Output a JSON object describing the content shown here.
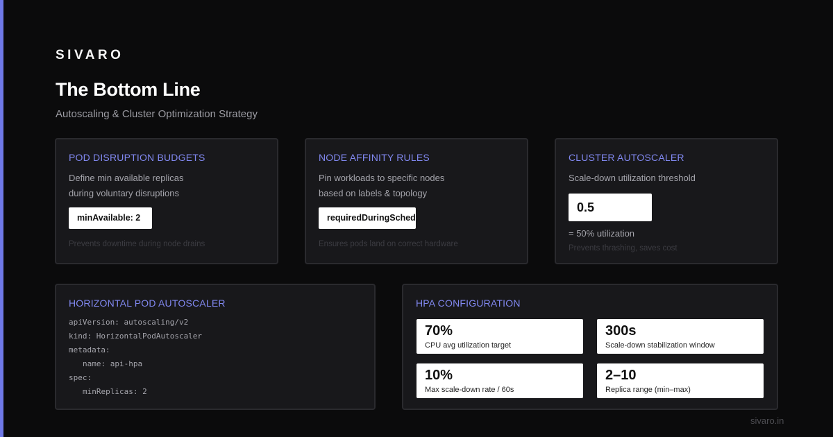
{
  "brand": "SIVARO",
  "title": "The Bottom Line",
  "subtitle": "Autoscaling & Cluster Optimization Strategy",
  "cards": {
    "pdb": {
      "title": "POD DISRUPTION BUDGETS",
      "desc_line1": "Define min available replicas",
      "desc_line2": "during voluntary disruptions",
      "chip": "minAvailable: 2",
      "note": "Prevents downtime during node drains"
    },
    "affinity": {
      "title": "NODE AFFINITY RULES",
      "desc_line1": "Pin workloads to specific nodes",
      "desc_line2": "based on labels & topology",
      "chip": "requiredDuringSchedul",
      "note": "Ensures pods land on correct hardware"
    },
    "cluster_autoscaler": {
      "title": "CLUSTER AUTOSCALER",
      "desc": "Scale-down utilization threshold",
      "value": "0.5",
      "value_caption": "= 50% utilization",
      "note": "Prevents thrashing, saves cost"
    },
    "hpa": {
      "title": "HORIZONTAL POD AUTOSCALER",
      "code_lines": [
        "apiVersion: autoscaling/v2",
        "kind: HorizontalPodAutoscaler",
        "metadata:",
        "name: api-hpa",
        "spec:",
        "minReplicas: 2"
      ]
    },
    "hpa_config": {
      "title": "HPA CONFIGURATION",
      "stats": [
        {
          "value": "70%",
          "label": "CPU avg utilization target"
        },
        {
          "value": "300s",
          "label": "Scale-down stabilization window"
        },
        {
          "value": "10%",
          "label": "Max scale-down rate / 60s"
        },
        {
          "value": "2–10",
          "label": "Replica range (min–max)"
        }
      ]
    }
  },
  "footer": "sivaro.in",
  "colors": {
    "accent": "#6f79e8",
    "card_title": "#8188f0",
    "background": "#0b0b0c",
    "card_background": "#18181b"
  }
}
